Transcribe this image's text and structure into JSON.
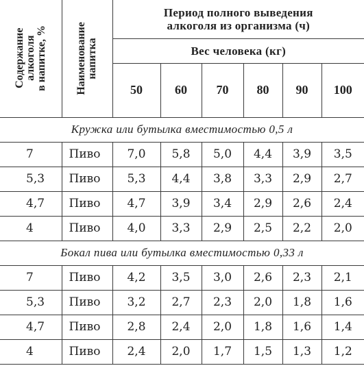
{
  "header": {
    "col_alcohol": "Содержание\nалкоголя\nв напитке, %",
    "col_drink": "Наименование\nнапитка",
    "period": "Период полного выведения\nалкоголя из организма (ч)",
    "weight": "Вес человека (кг)",
    "weights": [
      "50",
      "60",
      "70",
      "80",
      "90",
      "100"
    ]
  },
  "sections": [
    {
      "title": "Кружка или бутылка вместимостью 0,5 л",
      "rows": [
        {
          "alc": "7",
          "name": "Пиво",
          "vals": [
            "7,0",
            "5,8",
            "5,0",
            "4,4",
            "3,9",
            "3,5"
          ]
        },
        {
          "alc": "5,3",
          "name": "Пиво",
          "vals": [
            "5,3",
            "4,4",
            "3,8",
            "3,3",
            "2,9",
            "2,7"
          ]
        },
        {
          "alc": "4,7",
          "name": "Пиво",
          "vals": [
            "4,7",
            "3,9",
            "3,4",
            "2,9",
            "2,6",
            "2,4"
          ]
        },
        {
          "alc": "4",
          "name": "Пиво",
          "vals": [
            "4,0",
            "3,3",
            "2,9",
            "2,5",
            "2,2",
            "2,0"
          ]
        }
      ]
    },
    {
      "title": "Бокал пива или бутылка вместимостью 0,33 л",
      "rows": [
        {
          "alc": "7",
          "name": "Пиво",
          "vals": [
            "4,2",
            "3,5",
            "3,0",
            "2,6",
            "2,3",
            "2,1"
          ]
        },
        {
          "alc": "5,3",
          "name": "Пиво",
          "vals": [
            "3,2",
            "2,7",
            "2,3",
            "2,0",
            "1,8",
            "1,6"
          ]
        },
        {
          "alc": "4,7",
          "name": "Пиво",
          "vals": [
            "2,8",
            "2,4",
            "2,0",
            "1,8",
            "1,6",
            "1,4"
          ]
        },
        {
          "alc": "4",
          "name": "Пиво",
          "vals": [
            "2,4",
            "2,0",
            "1,7",
            "1,5",
            "1,3",
            "1,2"
          ]
        }
      ]
    }
  ]
}
